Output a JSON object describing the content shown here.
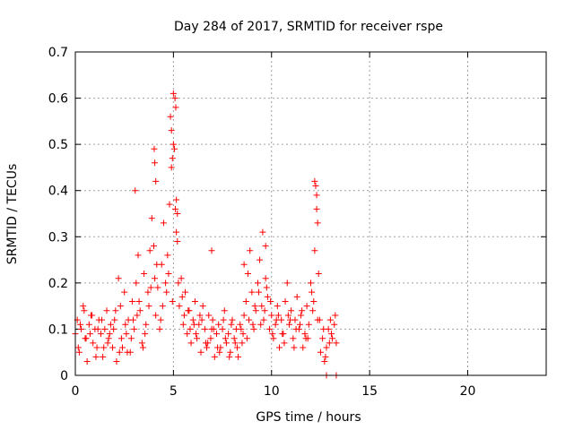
{
  "chart_data": {
    "type": "scatter",
    "title": "Day 284 of 2017, SRMTID for receiver rspe",
    "xlabel": "GPS time / hours",
    "ylabel": "SRMTID / TECUs",
    "xlim": [
      0,
      24
    ],
    "ylim": [
      0,
      0.7
    ],
    "xticks": [
      0,
      5,
      10,
      15,
      20
    ],
    "yticks": [
      0,
      0.1,
      0.2,
      0.3,
      0.4,
      0.5,
      0.6,
      0.7
    ],
    "grid": true,
    "marker": "+",
    "color": "#ff0000",
    "series": [
      {
        "name": "SRMTID",
        "x": [
          0.0,
          0.1,
          0.2,
          0.3,
          0.4,
          0.5,
          0.6,
          0.7,
          0.8,
          0.9,
          1.0,
          1.1,
          1.2,
          1.3,
          1.4,
          1.5,
          1.6,
          1.7,
          1.8,
          1.9,
          2.0,
          2.1,
          2.2,
          2.3,
          2.4,
          2.5,
          2.6,
          2.7,
          2.8,
          2.9,
          3.0,
          3.1,
          3.2,
          3.3,
          3.4,
          3.5,
          3.6,
          3.7,
          3.8,
          3.9,
          4.0,
          4.1,
          4.2,
          4.3,
          4.4,
          4.5,
          4.6,
          4.7,
          4.8,
          4.9,
          5.0,
          5.05,
          5.1,
          5.2,
          5.3,
          5.4,
          5.5,
          5.6,
          5.7,
          5.8,
          5.9,
          6.0,
          6.1,
          6.2,
          6.3,
          6.4,
          6.5,
          6.6,
          6.7,
          6.8,
          6.9,
          7.0,
          7.1,
          7.2,
          7.3,
          7.4,
          7.5,
          7.6,
          7.7,
          7.8,
          7.9,
          8.0,
          8.1,
          8.2,
          8.3,
          8.4,
          8.5,
          8.6,
          8.7,
          8.8,
          8.9,
          9.0,
          9.1,
          9.2,
          9.3,
          9.4,
          9.5,
          9.6,
          9.7,
          9.8,
          9.9,
          10.0,
          10.1,
          10.2,
          10.3,
          10.4,
          10.5,
          10.6,
          10.7,
          10.8,
          10.9,
          11.0,
          11.1,
          11.2,
          11.3,
          11.4,
          11.5,
          11.6,
          11.7,
          11.8,
          11.9,
          12.0,
          12.1,
          12.2,
          12.3,
          12.4,
          12.5,
          12.6,
          12.7,
          12.8,
          12.9,
          13.0,
          13.1,
          13.2,
          13.3,
          0.15,
          0.45,
          0.75,
          1.05,
          1.35,
          1.65,
          1.95,
          2.25,
          2.55,
          2.85,
          3.15,
          3.45,
          3.75,
          4.05,
          4.35,
          4.65,
          4.95,
          5.25,
          5.55,
          5.85,
          6.15,
          6.45,
          6.75,
          7.05,
          7.35,
          7.65,
          7.95,
          8.25,
          8.55,
          8.85,
          9.15,
          9.45,
          9.75,
          10.05,
          10.35,
          10.65,
          10.95,
          11.25,
          11.55,
          11.85,
          12.15,
          12.45,
          12.75,
          13.05,
          0.25,
          0.55,
          0.85,
          1.15,
          1.45,
          1.75,
          2.05,
          2.35,
          2.65,
          2.95,
          3.25,
          3.55,
          3.85,
          4.15,
          4.45,
          4.75,
          5.15,
          5.45,
          5.75,
          6.05,
          6.35,
          6.65,
          6.95,
          7.25,
          7.55,
          7.85,
          8.15,
          8.45,
          8.75,
          9.05,
          9.35,
          9.65,
          9.95,
          10.25,
          10.55,
          10.85,
          11.15,
          11.45,
          11.75,
          12.05,
          12.35,
          12.65,
          12.95,
          13.25,
          3.05,
          4.02,
          4.05,
          4.1,
          4.85,
          4.9,
          4.95,
          5.0,
          5.08,
          5.12,
          5.15,
          5.2,
          12.2,
          12.25,
          12.3,
          12.35,
          9.55,
          9.7,
          8.6,
          6.95,
          12.8,
          13.3
        ],
        "y": [
          0.09,
          0.12,
          0.05,
          0.1,
          0.15,
          0.08,
          0.03,
          0.11,
          0.13,
          0.07,
          0.1,
          0.06,
          0.12,
          0.09,
          0.04,
          0.1,
          0.14,
          0.08,
          0.11,
          0.06,
          0.12,
          0.03,
          0.21,
          0.15,
          0.06,
          0.18,
          0.09,
          0.12,
          0.05,
          0.16,
          0.1,
          0.2,
          0.26,
          0.14,
          0.07,
          0.22,
          0.11,
          0.18,
          0.27,
          0.34,
          0.28,
          0.13,
          0.19,
          0.1,
          0.24,
          0.33,
          0.2,
          0.26,
          0.37,
          0.45,
          0.5,
          0.49,
          0.36,
          0.29,
          0.15,
          0.21,
          0.11,
          0.18,
          0.09,
          0.14,
          0.07,
          0.12,
          0.16,
          0.08,
          0.11,
          0.05,
          0.15,
          0.1,
          0.06,
          0.13,
          0.08,
          0.12,
          0.04,
          0.09,
          0.11,
          0.06,
          0.1,
          0.14,
          0.07,
          0.09,
          0.05,
          0.12,
          0.08,
          0.1,
          0.04,
          0.11,
          0.07,
          0.13,
          0.16,
          0.22,
          0.27,
          0.18,
          0.1,
          0.14,
          0.2,
          0.25,
          0.15,
          0.12,
          0.21,
          0.17,
          0.1,
          0.13,
          0.08,
          0.11,
          0.15,
          0.06,
          0.12,
          0.09,
          0.16,
          0.2,
          0.11,
          0.14,
          0.08,
          0.12,
          0.17,
          0.1,
          0.13,
          0.06,
          0.09,
          0.15,
          0.11,
          0.2,
          0.14,
          0.27,
          0.36,
          0.22,
          0.05,
          0.08,
          0.03,
          0.06,
          0.1,
          0.12,
          0.08,
          0.11,
          0.07,
          0.06,
          0.14,
          0.09,
          0.04,
          0.12,
          0.07,
          0.1,
          0.05,
          0.11,
          0.08,
          0.13,
          0.06,
          0.15,
          0.21,
          0.12,
          0.18,
          0.16,
          0.2,
          0.13,
          0.1,
          0.09,
          0.12,
          0.07,
          0.1,
          0.05,
          0.08,
          0.11,
          0.06,
          0.09,
          0.12,
          0.15,
          0.11,
          0.19,
          0.09,
          0.13,
          0.07,
          0.12,
          0.1,
          0.14,
          0.08,
          0.16,
          0.12,
          0.04,
          0.09,
          0.11,
          0.08,
          0.13,
          0.1,
          0.06,
          0.09,
          0.14,
          0.08,
          0.05,
          0.12,
          0.16,
          0.09,
          0.19,
          0.24,
          0.15,
          0.22,
          0.31,
          0.17,
          0.14,
          0.11,
          0.13,
          0.07,
          0.1,
          0.06,
          0.12,
          0.04,
          0.07,
          0.1,
          0.08,
          0.11,
          0.18,
          0.14,
          0.16,
          0.12,
          0.09,
          0.13,
          0.06,
          0.11,
          0.08,
          0.18,
          0.12,
          0.1,
          0.07,
          0.13,
          0.4,
          0.49,
          0.46,
          0.42,
          0.56,
          0.53,
          0.47,
          0.61,
          0.6,
          0.58,
          0.38,
          0.35,
          0.42,
          0.41,
          0.39,
          0.33,
          0.31,
          0.28,
          0.24,
          0.27,
          0.0,
          0.0
        ]
      }
    ]
  }
}
